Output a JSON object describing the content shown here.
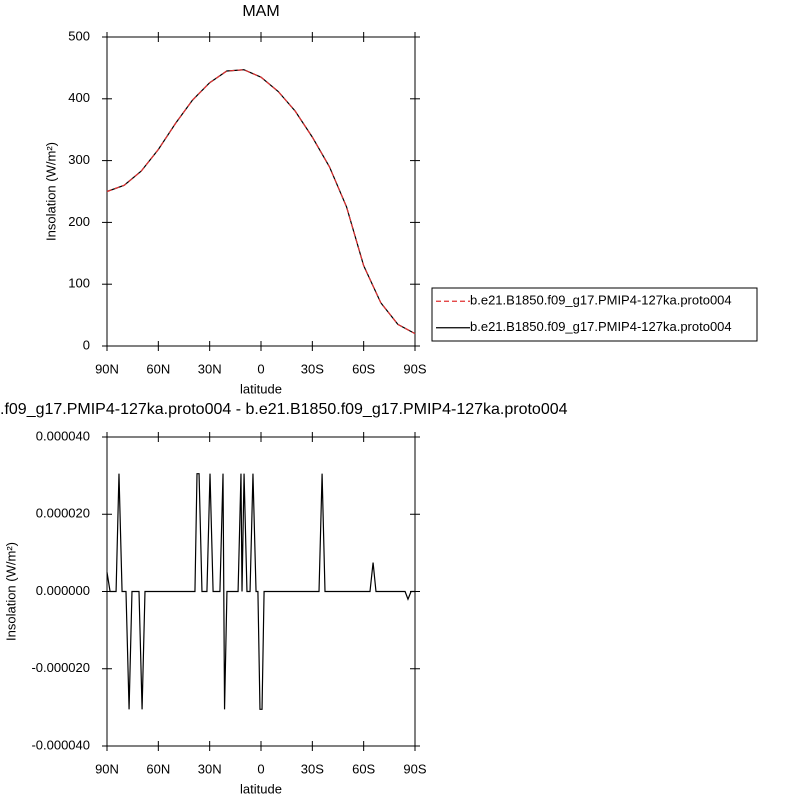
{
  "chart_data": [
    {
      "type": "line",
      "title": "MAM",
      "x_label": "latitude",
      "y_label": "Insolation (W/m²)",
      "x": [
        90,
        80,
        70,
        60,
        50,
        40,
        30,
        20,
        10,
        0,
        -10,
        -20,
        -30,
        -40,
        -50,
        -60,
        -70,
        -80,
        -90
      ],
      "series": [
        {
          "name": "b.e21.B1850.f09_g17.PMIP4-127ka.proto004",
          "color": "#e03030",
          "line_style": "dashed",
          "values": [
            250,
            260,
            283,
            318,
            360,
            398,
            426,
            445,
            447,
            435,
            412,
            380,
            338,
            290,
            225,
            130,
            70,
            35,
            20
          ]
        },
        {
          "name": "b.e21.B1850.f09_g17.PMIP4-127ka.proto004",
          "color": "#000000",
          "line_style": "solid",
          "values": [
            250,
            260,
            283,
            318,
            360,
            398,
            426,
            445,
            447,
            435,
            412,
            380,
            338,
            290,
            225,
            130,
            70,
            35,
            20
          ]
        }
      ],
      "xlim": [
        90,
        -90
      ],
      "xticks": [
        {
          "value": 90,
          "label": "90N"
        },
        {
          "value": 60,
          "label": "60N"
        },
        {
          "value": 30,
          "label": "30N"
        },
        0,
        {
          "value": -30,
          "label": "30S"
        },
        {
          "value": -60,
          "label": "60S"
        },
        {
          "value": -90,
          "label": "90S"
        }
      ],
      "ylim": [
        0,
        500
      ],
      "yticks": [
        0,
        100,
        200,
        300,
        400,
        500
      ],
      "legend": "right"
    },
    {
      "type": "line",
      "title": ".f09_g17.PMIP4-127ka.proto004 - b.e21.B1850.f09_g17.PMIP4-127ka.proto004",
      "x_label": "latitude",
      "y_label": "Insolation (W/m²)",
      "x": [
        90,
        88.2,
        84.7,
        83.0,
        81.2,
        78.9,
        77.1,
        75.4,
        71.3,
        69.5,
        67.8,
        38.6,
        37.4,
        36.2,
        34.5,
        31.6,
        29.8,
        28.0,
        24.0,
        22.2,
        21.3,
        19.9,
        13.4,
        11.7,
        11.1,
        9.9,
        8.2,
        6.4,
        4.7,
        2.9,
        1.8,
        0.6,
        -0.6,
        -1.8,
        -33.9,
        -35.7,
        -37.4,
        -63.7,
        -65.5,
        -67.2,
        -84.2,
        -85.9,
        -87.7,
        -90
      ],
      "values": [
        5e-06,
        0,
        0,
        3.05e-05,
        0,
        0,
        -3.05e-05,
        0,
        0,
        -3.05e-05,
        0,
        0,
        3.05e-05,
        3.05e-05,
        0,
        0,
        3.05e-05,
        0,
        0,
        3.05e-05,
        -3.05e-05,
        0,
        0,
        3.05e-05,
        0,
        3.05e-05,
        0,
        0,
        3.05e-05,
        0,
        0,
        -3.05e-05,
        -3.05e-05,
        0,
        0,
        3.05e-05,
        0,
        0,
        7.5e-06,
        0,
        0,
        -2e-06,
        0,
        0
      ],
      "color": "#000000",
      "xlim": [
        90,
        -90
      ],
      "xticks": [
        {
          "value": 90,
          "label": "90N"
        },
        {
          "value": 60,
          "label": "60N"
        },
        {
          "value": 30,
          "label": "30N"
        },
        0,
        {
          "value": -30,
          "label": "30S"
        },
        {
          "value": -60,
          "label": "60S"
        },
        {
          "value": -90,
          "label": "90S"
        }
      ],
      "ylim": [
        -4e-05,
        4e-05
      ],
      "yticks": [
        {
          "value": -4e-05,
          "label": "-0.000040"
        },
        {
          "value": -2e-05,
          "label": "-0.000020"
        },
        {
          "value": 0,
          "label": "0.000000"
        },
        {
          "value": 2e-05,
          "label": "0.000020"
        },
        {
          "value": 4e-05,
          "label": "0.000040"
        }
      ]
    }
  ]
}
